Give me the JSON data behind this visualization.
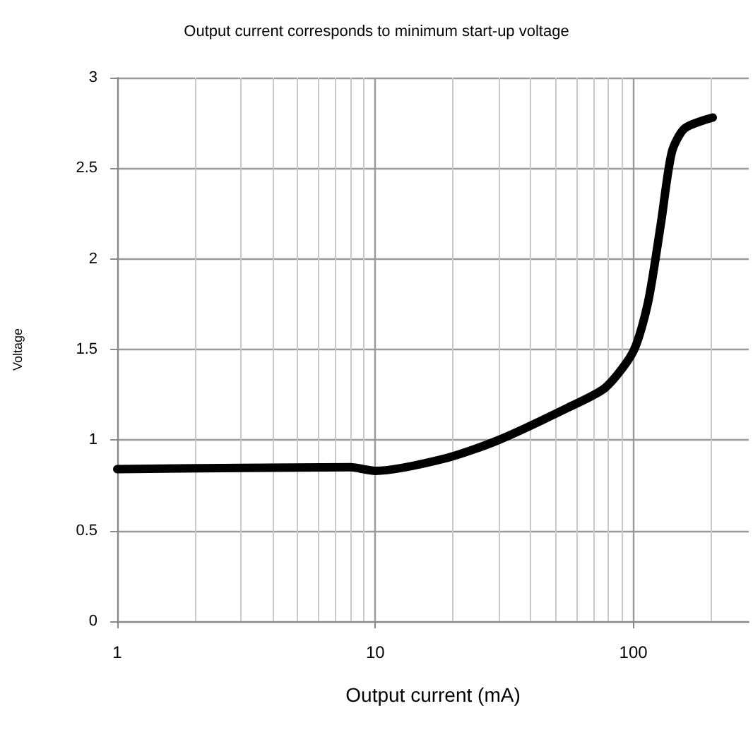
{
  "chart_data": {
    "type": "line",
    "title": "Output current corresponds to minimum start-up voltage",
    "xlabel": "Output current (mA)",
    "ylabel": "Voltage",
    "x": [
      1,
      8,
      10,
      18.8,
      30,
      56,
      78,
      100,
      114,
      128,
      141,
      158,
      203
    ],
    "series": [
      {
        "color": "#000000",
        "values": [
          0.84,
          0.85,
          0.83,
          0.9,
          1.0,
          1.18,
          1.29,
          1.49,
          1.76,
          2.2,
          2.59,
          2.72,
          2.78
        ]
      }
    ],
    "log": "x",
    "xlim": [
      1,
      280
    ],
    "xticks": [
      1,
      10,
      100
    ],
    "ylim": [
      0,
      3
    ],
    "yticks": [
      0,
      0.5,
      1,
      1.5,
      2,
      2.5,
      3
    ],
    "grid": true,
    "marker": "none",
    "line_style": "solid"
  }
}
